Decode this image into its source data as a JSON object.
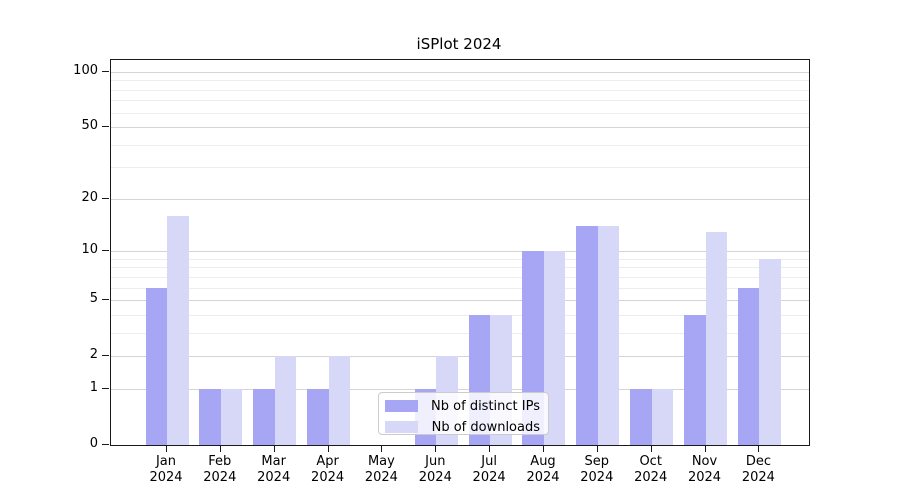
{
  "chart_data": {
    "type": "bar",
    "title": "iSPlot 2024",
    "categories": [
      "Jan",
      "Feb",
      "Mar",
      "Apr",
      "May",
      "Jun",
      "Jul",
      "Aug",
      "Sep",
      "Oct",
      "Nov",
      "Dec"
    ],
    "year_label": "2024",
    "series": [
      {
        "name": "Nb of distinct IPs",
        "color": "#a6a6f4",
        "values": [
          6,
          1,
          1,
          1,
          0,
          1,
          4,
          10,
          14,
          1,
          4,
          6
        ]
      },
      {
        "name": "Nb of downloads",
        "color": "#d7d7f8",
        "values": [
          16,
          1,
          2,
          2,
          0,
          2,
          4,
          10,
          14,
          1,
          13,
          9
        ]
      }
    ],
    "y_axis": {
      "scale": "log1p",
      "major_ticks": [
        100,
        50,
        20,
        10,
        5,
        2,
        1,
        0
      ],
      "minor_ticks": [
        3,
        4,
        6,
        7,
        8,
        9,
        30,
        40,
        60,
        70,
        80,
        90
      ],
      "top_value": 116,
      "ylim": [
        0,
        116
      ]
    },
    "grid": true,
    "legend_position": "lower center",
    "colors": {
      "major_grid": "#d4d4d4",
      "minor_grid": "#ededed",
      "spine": "#1a1a1a",
      "background": "#ffffff"
    }
  }
}
